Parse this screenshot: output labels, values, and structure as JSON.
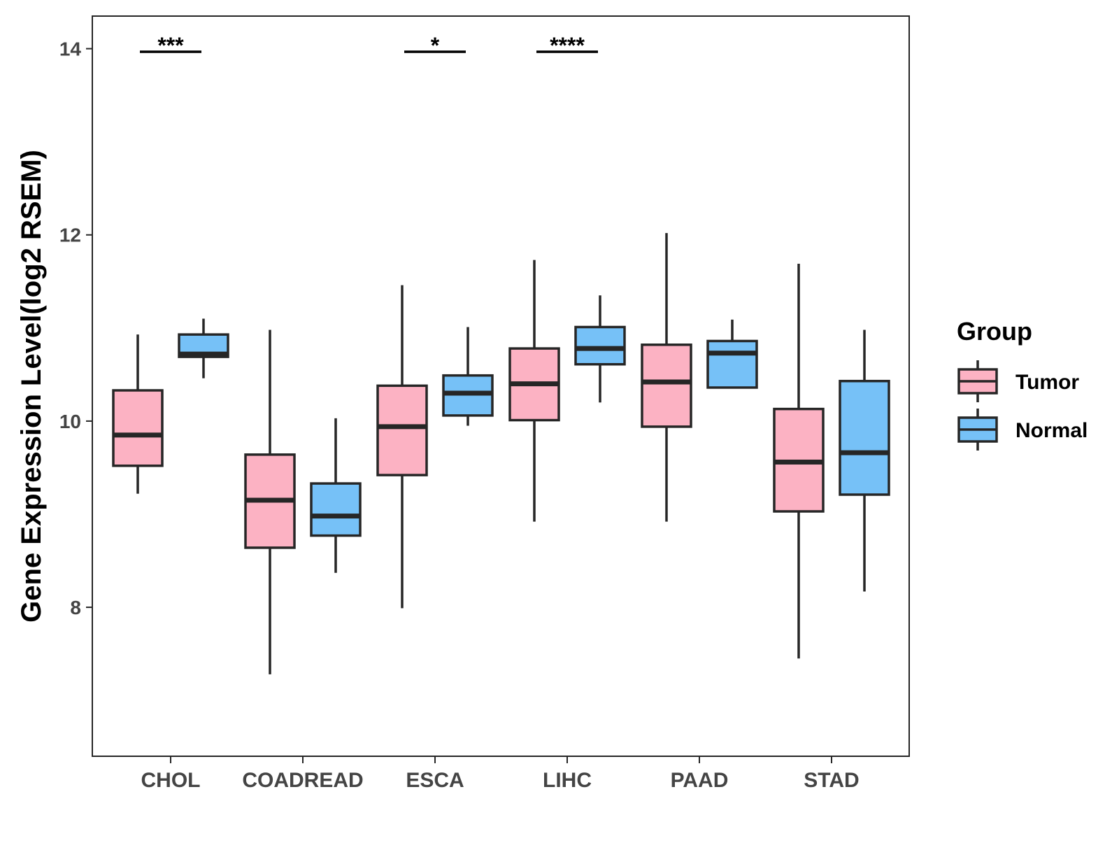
{
  "chart_data": {
    "type": "boxplot",
    "title": "",
    "xlabel": "",
    "ylabel": "Gene Expression Level(log2 RSEM)",
    "ylim": [
      6.4,
      14.35
    ],
    "yticks": [
      8,
      10,
      12,
      14
    ],
    "ytick_labels": [
      "8",
      "10",
      "12",
      "14"
    ],
    "grid": false,
    "legend_position": "right",
    "categories": [
      "CHOL",
      "COADREAD",
      "ESCA",
      "LIHC",
      "PAAD",
      "STAD"
    ],
    "legend": {
      "title": "Group",
      "entries": [
        "Tumor",
        "Normal"
      ]
    },
    "colors": {
      "Tumor": "#FCB2C3",
      "Normal": "#76C1F7",
      "stroke": "#262626"
    },
    "series": [
      {
        "name": "Tumor",
        "boxes": [
          {
            "whisker_low": 9.22,
            "q1": 9.52,
            "median": 9.85,
            "q3": 10.33,
            "whisker_high": 10.93
          },
          {
            "whisker_low": 7.28,
            "q1": 8.64,
            "median": 9.15,
            "q3": 9.64,
            "whisker_high": 10.98
          },
          {
            "whisker_low": 7.99,
            "q1": 9.42,
            "median": 9.94,
            "q3": 10.38,
            "whisker_high": 11.46
          },
          {
            "whisker_low": 8.92,
            "q1": 10.01,
            "median": 10.4,
            "q3": 10.78,
            "whisker_high": 11.73
          },
          {
            "whisker_low": 8.92,
            "q1": 9.94,
            "median": 10.42,
            "q3": 10.82,
            "whisker_high": 12.02
          },
          {
            "whisker_low": 7.45,
            "q1": 9.03,
            "median": 9.56,
            "q3": 10.13,
            "whisker_high": 11.69
          }
        ]
      },
      {
        "name": "Normal",
        "boxes": [
          {
            "whisker_low": 10.46,
            "q1": 10.69,
            "median": 10.72,
            "q3": 10.93,
            "whisker_high": 11.1
          },
          {
            "whisker_low": 8.37,
            "q1": 8.77,
            "median": 8.98,
            "q3": 9.33,
            "whisker_high": 10.03
          },
          {
            "whisker_low": 9.95,
            "q1": 10.06,
            "median": 10.3,
            "q3": 10.49,
            "whisker_high": 11.01
          },
          {
            "whisker_low": 10.2,
            "q1": 10.61,
            "median": 10.78,
            "q3": 11.01,
            "whisker_high": 11.35
          },
          {
            "whisker_low": 10.36,
            "q1": 10.36,
            "median": 10.73,
            "q3": 10.86,
            "whisker_high": 11.09
          },
          {
            "whisker_low": 8.17,
            "q1": 9.21,
            "median": 9.66,
            "q3": 10.43,
            "whisker_high": 10.98
          }
        ]
      }
    ],
    "annotations": [
      {
        "category": "CHOL",
        "text": "***"
      },
      {
        "category": "ESCA",
        "text": "*"
      },
      {
        "category": "LIHC",
        "text": "****"
      }
    ]
  }
}
